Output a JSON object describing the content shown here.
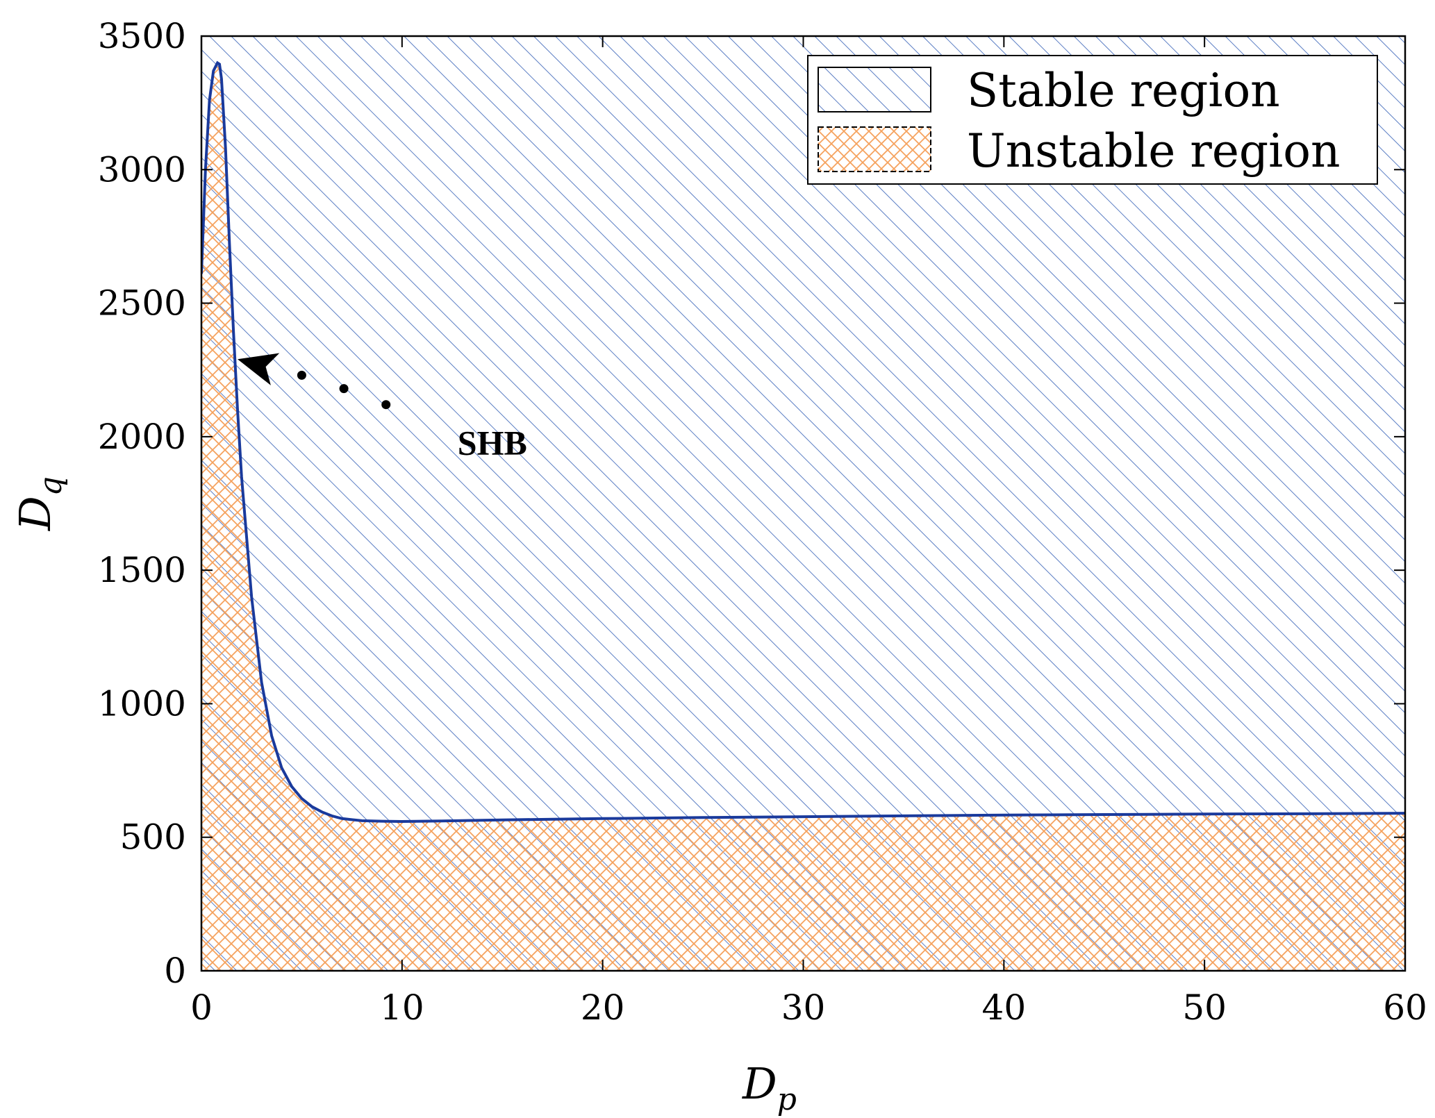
{
  "chart_data": {
    "type": "area",
    "xlabel": "D",
    "xlabel_sub": "p",
    "ylabel": "D",
    "ylabel_sub": "q",
    "xlim": [
      0,
      60
    ],
    "ylim": [
      0,
      3500
    ],
    "x_ticks": [
      0,
      10,
      20,
      30,
      40,
      50,
      60
    ],
    "y_ticks": [
      0,
      500,
      1000,
      1500,
      2000,
      2500,
      3000,
      3500
    ],
    "grid": false,
    "legend_position": "top-right",
    "legend": [
      {
        "label": "Stable region",
        "pattern": "diagonal-hatch",
        "color": "#5b7ec4"
      },
      {
        "label": "Unstable region",
        "pattern": "cross-hatch",
        "color": "#f5a25e"
      }
    ],
    "boundary": {
      "color": "#1a3a9c",
      "x": [
        0,
        0.2,
        0.4,
        0.6,
        0.8,
        0.9,
        1.0,
        1.2,
        1.4,
        1.6,
        1.8,
        2.0,
        2.5,
        3.0,
        3.5,
        4.0,
        4.5,
        5.0,
        5.5,
        6.0,
        6.5,
        7.0,
        8.0,
        9.0,
        10.0,
        11.0,
        12.0,
        15.0,
        20.0,
        25.0,
        30.0,
        35.0,
        40.0,
        45.0,
        50.0,
        55.0,
        60.0
      ],
      "y": [
        2610,
        3000,
        3260,
        3370,
        3400,
        3395,
        3340,
        3080,
        2720,
        2390,
        2100,
        1850,
        1400,
        1080,
        880,
        760,
        690,
        645,
        615,
        595,
        580,
        570,
        562,
        560,
        559,
        560,
        561,
        565,
        570,
        574,
        577,
        580,
        583,
        585,
        587,
        588,
        590
      ]
    },
    "annotations": [
      {
        "text": "SHB",
        "x": 14.5,
        "y": 1980,
        "arrow_from": [
          4.8,
          2230
        ],
        "arrow_to": [
          1.8,
          2290
        ]
      }
    ],
    "ellipsis_points": [
      [
        5.0,
        2230
      ],
      [
        7.1,
        2180
      ],
      [
        9.2,
        2120
      ]
    ]
  }
}
